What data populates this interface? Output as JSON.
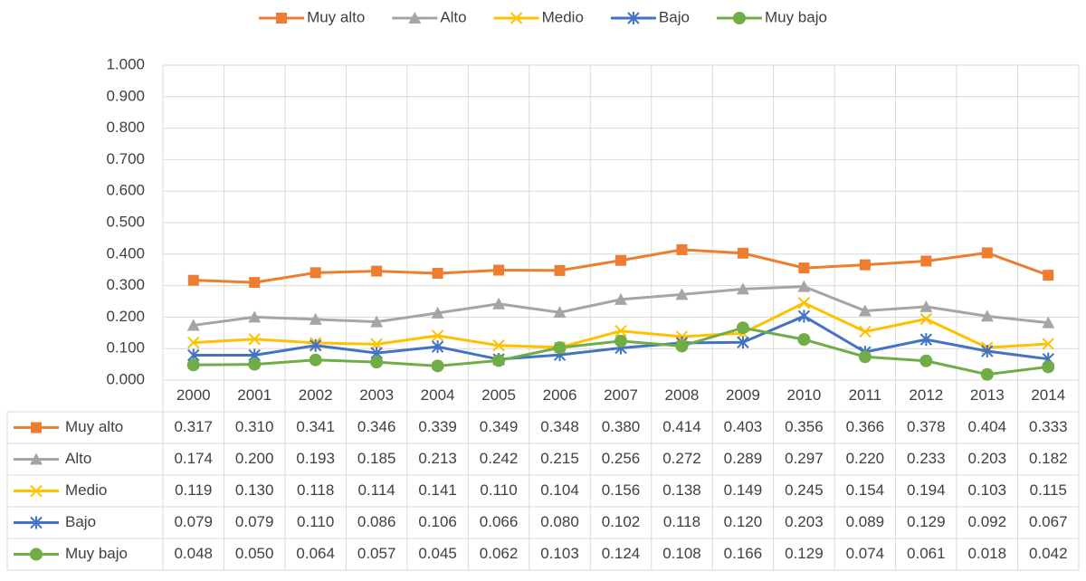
{
  "chart_data": {
    "type": "line",
    "categories": [
      "2000",
      "2001",
      "2002",
      "2003",
      "2004",
      "2005",
      "2006",
      "2007",
      "2008",
      "2009",
      "2010",
      "2011",
      "2012",
      "2013",
      "2014"
    ],
    "ylim": [
      0,
      1
    ],
    "yticks": [
      {
        "value": 0,
        "label": "0.000"
      },
      {
        "value": 0.1,
        "label": "0.100"
      },
      {
        "value": 0.2,
        "label": "0.200"
      },
      {
        "value": 0.3,
        "label": "0.300"
      },
      {
        "value": 0.4,
        "label": "0.400"
      },
      {
        "value": 0.5,
        "label": "0.500"
      },
      {
        "value": 0.6,
        "label": "0.600"
      },
      {
        "value": 0.7,
        "label": "0.700"
      },
      {
        "value": 0.8,
        "label": "0.800"
      },
      {
        "value": 0.9,
        "label": "0.900"
      },
      {
        "value": 1,
        "label": "1.000"
      }
    ],
    "grid": true,
    "legend": "top",
    "series": [
      {
        "name": "Muy alto",
        "color": "#ed7d31",
        "marker": "square",
        "values": [
          0.317,
          0.31,
          0.341,
          0.346,
          0.339,
          0.349,
          0.348,
          0.38,
          0.414,
          0.403,
          0.356,
          0.366,
          0.378,
          0.404,
          0.333
        ],
        "value_labels": [
          "0.317",
          "0.310",
          "0.341",
          "0.346",
          "0.339",
          "0.349",
          "0.348",
          "0.380",
          "0.414",
          "0.403",
          "0.356",
          "0.366",
          "0.378",
          "0.404",
          "0.333"
        ]
      },
      {
        "name": "Alto",
        "color": "#a5a5a5",
        "marker": "triangle",
        "values": [
          0.174,
          0.2,
          0.193,
          0.185,
          0.213,
          0.242,
          0.215,
          0.256,
          0.272,
          0.289,
          0.297,
          0.22,
          0.233,
          0.203,
          0.182
        ],
        "value_labels": [
          "0.174",
          "0.200",
          "0.193",
          "0.185",
          "0.213",
          "0.242",
          "0.215",
          "0.256",
          "0.272",
          "0.289",
          "0.297",
          "0.220",
          "0.233",
          "0.203",
          "0.182"
        ]
      },
      {
        "name": "Medio",
        "color": "#ffc000",
        "marker": "x",
        "values": [
          0.119,
          0.13,
          0.118,
          0.114,
          0.141,
          0.11,
          0.104,
          0.156,
          0.138,
          0.149,
          0.245,
          0.154,
          0.194,
          0.103,
          0.115
        ],
        "value_labels": [
          "0.119",
          "0.130",
          "0.118",
          "0.114",
          "0.141",
          "0.110",
          "0.104",
          "0.156",
          "0.138",
          "0.149",
          "0.245",
          "0.154",
          "0.194",
          "0.103",
          "0.115"
        ]
      },
      {
        "name": "Bajo",
        "color": "#4472c4",
        "marker": "star",
        "values": [
          0.079,
          0.079,
          0.11,
          0.086,
          0.106,
          0.066,
          0.08,
          0.102,
          0.118,
          0.12,
          0.203,
          0.089,
          0.129,
          0.092,
          0.067
        ],
        "value_labels": [
          "0.079",
          "0.079",
          "0.110",
          "0.086",
          "0.106",
          "0.066",
          "0.080",
          "0.102",
          "0.118",
          "0.120",
          "0.203",
          "0.089",
          "0.129",
          "0.092",
          "0.067"
        ]
      },
      {
        "name": "Muy bajo",
        "color": "#70ad47",
        "marker": "circle",
        "values": [
          0.048,
          0.05,
          0.064,
          0.057,
          0.045,
          0.062,
          0.103,
          0.124,
          0.108,
          0.166,
          0.129,
          0.074,
          0.061,
          0.018,
          0.042
        ],
        "value_labels": [
          "0.048",
          "0.050",
          "0.064",
          "0.057",
          "0.045",
          "0.062",
          "0.103",
          "0.124",
          "0.108",
          "0.166",
          "0.129",
          "0.074",
          "0.061",
          "0.018",
          "0.042"
        ]
      }
    ]
  }
}
